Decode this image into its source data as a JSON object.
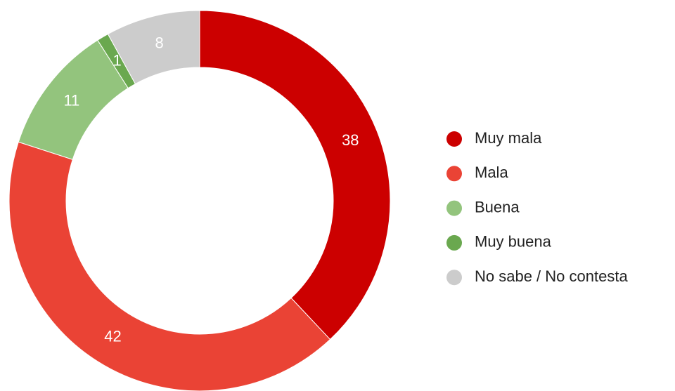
{
  "chart_data": {
    "type": "donut",
    "categories": [
      "Muy mala",
      "Mala",
      "Buena",
      "Muy buena",
      "No sabe / No contesta"
    ],
    "values": [
      38,
      42,
      11,
      1,
      8
    ],
    "colors": [
      "#cc0000",
      "#ea4335",
      "#93c47d",
      "#6aa84f",
      "#cccccc"
    ],
    "legend": "right"
  }
}
